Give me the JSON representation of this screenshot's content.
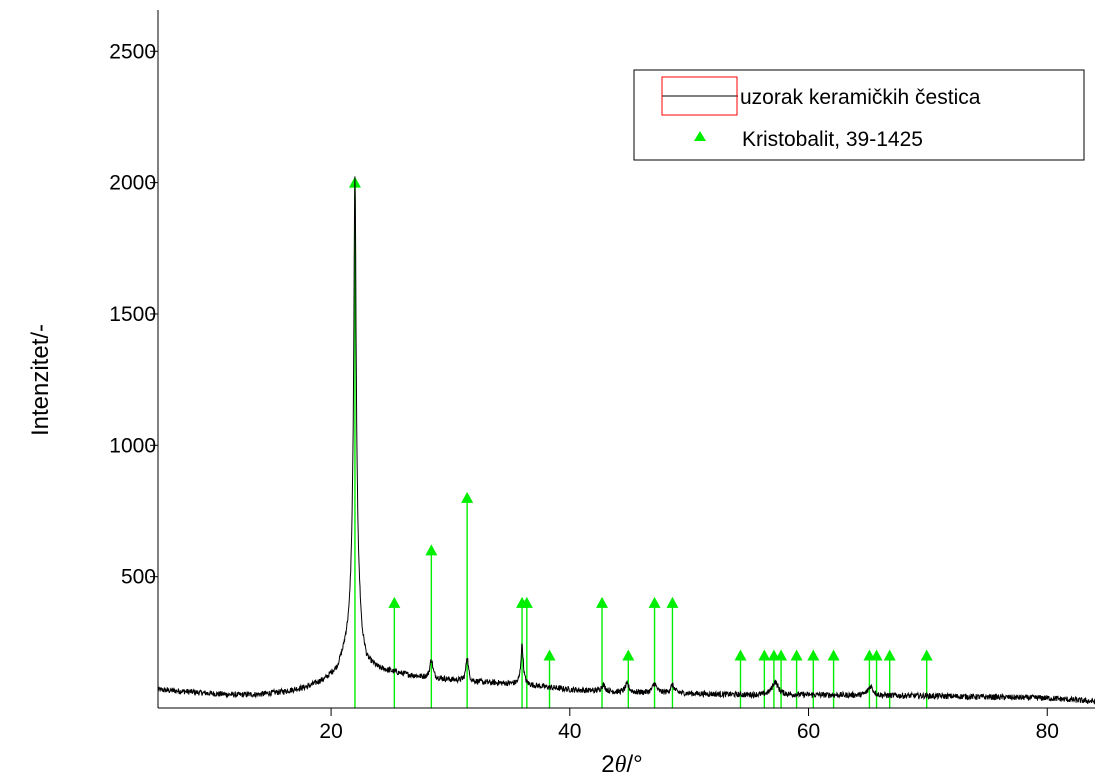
{
  "chart_data": {
    "type": "line",
    "title": "",
    "xlabel_prefix": "2",
    "xlabel_symbol": "θ",
    "xlabel_suffix": "/°",
    "ylabel": "Intenzitet/-",
    "xlim": [
      5.5,
      84
    ],
    "ylim": [
      0,
      2600
    ],
    "xticks": [
      20,
      40,
      60,
      80
    ],
    "yticks": [
      500,
      1000,
      1500,
      2000,
      2500
    ],
    "legend": {
      "placement": "top-right",
      "entries": [
        {
          "label": "uzorak keramičkih čestica",
          "kind": "line",
          "color": "#000000"
        },
        {
          "label": "Kristobalit, 39-1425",
          "kind": "marker",
          "color": "#00ee00"
        }
      ]
    },
    "series": [
      {
        "name": "uzorak keramičkih čestica",
        "color": "#000000",
        "baseline_points": [
          [
            5.5,
            70
          ],
          [
            8,
            62
          ],
          [
            10,
            55
          ],
          [
            12,
            50
          ],
          [
            14,
            52
          ],
          [
            16,
            62
          ],
          [
            18,
            80
          ],
          [
            19.5,
            110
          ],
          [
            20.5,
            150
          ],
          [
            21.0,
            210
          ],
          [
            21.5,
            300
          ],
          [
            21.8,
            450
          ],
          [
            22.2,
            450
          ],
          [
            22.6,
            250
          ],
          [
            23,
            180
          ],
          [
            24,
            150
          ],
          [
            26,
            130
          ],
          [
            28,
            115
          ],
          [
            30,
            108
          ],
          [
            32,
            100
          ],
          [
            34,
            95
          ],
          [
            36,
            90
          ],
          [
            38,
            80
          ],
          [
            40,
            70
          ],
          [
            44,
            60
          ],
          [
            50,
            55
          ],
          [
            55,
            50
          ],
          [
            60,
            50
          ],
          [
            65,
            48
          ],
          [
            70,
            46
          ],
          [
            75,
            42
          ],
          [
            80,
            38
          ],
          [
            84,
            25
          ]
        ],
        "peaks": [
          {
            "x": 22.0,
            "height": 1570,
            "width": 0.12
          },
          {
            "x": 28.4,
            "height": 70,
            "width": 0.15
          },
          {
            "x": 31.4,
            "height": 95,
            "width": 0.12
          },
          {
            "x": 36.0,
            "height": 150,
            "width": 0.12
          },
          {
            "x": 42.8,
            "height": 25,
            "width": 0.2
          },
          {
            "x": 44.8,
            "height": 30,
            "width": 0.2
          },
          {
            "x": 47.1,
            "height": 35,
            "width": 0.2
          },
          {
            "x": 48.6,
            "height": 30,
            "width": 0.2
          },
          {
            "x": 57.2,
            "height": 50,
            "width": 0.3
          },
          {
            "x": 65.2,
            "height": 35,
            "width": 0.25
          }
        ]
      }
    ],
    "reference_lines": {
      "name": "Kristobalit, 39-1425",
      "color": "#00ee00",
      "x": [
        22.0,
        25.3,
        28.4,
        31.4,
        36.0,
        36.4,
        38.3,
        42.7,
        44.9,
        47.1,
        48.6,
        54.3,
        56.3,
        57.1,
        57.7,
        59.0,
        60.4,
        62.1,
        65.1,
        65.7,
        66.8,
        69.9
      ],
      "y": [
        2000,
        400,
        600,
        800,
        400,
        400,
        200,
        400,
        200,
        400,
        400,
        200,
        200,
        200,
        200,
        200,
        200,
        200,
        200,
        200,
        200,
        200
      ]
    }
  }
}
